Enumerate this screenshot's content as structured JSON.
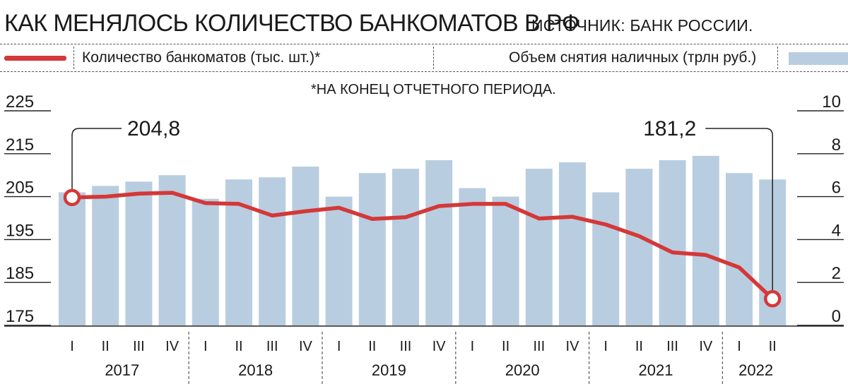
{
  "header": {
    "title": "КАК МЕНЯЛОСЬ КОЛИЧЕСТВО БАНКОМАТОВ В РФ",
    "source": "ИСТОЧНИК: БАНК РОССИИ."
  },
  "legend": {
    "line_label": "Количество банкоматов (тыс. шт.)*",
    "bar_label": "Объем снятия наличных (трлн руб.)"
  },
  "note": "*НА КОНЕЦ ОТЧЕТНОГО ПЕРИОДА.",
  "colors": {
    "line": "#d43838",
    "bars": "#b9cde0",
    "axis": "#222222"
  },
  "chart_data": {
    "type": "bar",
    "title": "КАК МЕНЯЛОСЬ КОЛИЧЕСТВО БАНКОМАТОВ В РФ",
    "quarters": [
      "I",
      "II",
      "III",
      "IV",
      "I",
      "II",
      "III",
      "IV",
      "I",
      "II",
      "III",
      "IV",
      "I",
      "II",
      "III",
      "IV",
      "I",
      "II",
      "III",
      "IV",
      "I",
      "II"
    ],
    "years": [
      {
        "label": "2017",
        "count": 4
      },
      {
        "label": "2018",
        "count": 4
      },
      {
        "label": "2019",
        "count": 4
      },
      {
        "label": "2020",
        "count": 4
      },
      {
        "label": "2021",
        "count": 4
      },
      {
        "label": "2022",
        "count": 2
      }
    ],
    "left_axis": {
      "ticks": [
        225,
        215,
        205,
        195,
        185,
        175
      ],
      "range": [
        175,
        225
      ]
    },
    "right_axis": {
      "ticks": [
        10,
        8,
        6,
        4,
        2,
        0
      ],
      "range": [
        0,
        10
      ]
    },
    "series": [
      {
        "name": "Объем снятия наличных (трлн руб.)",
        "kind": "bar",
        "axis": "right",
        "values": [
          6.2,
          6.5,
          6.7,
          7.0,
          5.9,
          6.8,
          6.9,
          7.4,
          6.0,
          7.1,
          7.3,
          7.7,
          6.4,
          6.0,
          7.3,
          7.6,
          6.2,
          7.3,
          7.7,
          7.9,
          7.1,
          6.8
        ]
      },
      {
        "name": "Количество банкоматов (тыс. шт.)*",
        "kind": "line",
        "axis": "left",
        "values": [
          204.8,
          205.0,
          205.7,
          205.9,
          203.5,
          203.3,
          200.6,
          201.6,
          202.4,
          199.8,
          200.2,
          202.8,
          203.3,
          203.3,
          199.9,
          200.3,
          198.5,
          195.8,
          192.0,
          191.4,
          188.5,
          181.2
        ]
      }
    ],
    "callouts": [
      {
        "label": "204,8",
        "index": 0
      },
      {
        "label": "181,2",
        "index": 21
      }
    ],
    "grid": false
  }
}
